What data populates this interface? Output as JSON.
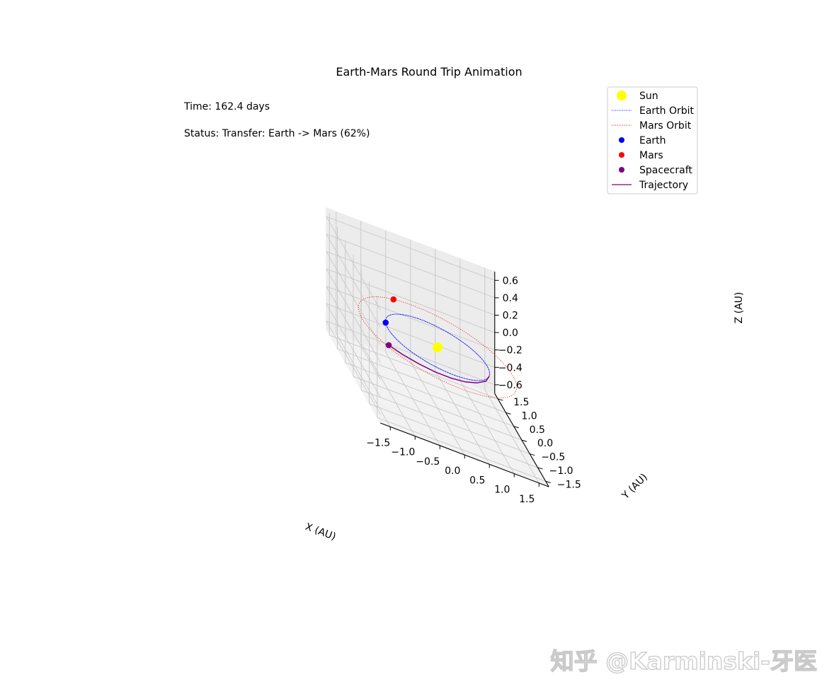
{
  "chart_data": {
    "type": "3d-line-scatter",
    "title": "Earth-Mars Round Trip Animation",
    "xlabel": "X (AU)",
    "ylabel": "Y (AU)",
    "zlabel": "Z (AU)",
    "xlim": [
      -1.7,
      1.7
    ],
    "ylim": [
      -1.7,
      1.7
    ],
    "zlim": [
      -0.7,
      0.7
    ],
    "xticks": [
      "−1.5",
      "−1.0",
      "−0.5",
      "0.0",
      "0.5",
      "1.0",
      "1.5"
    ],
    "yticks": [
      "−1.5",
      "−1.0",
      "−0.5",
      "0.0",
      "0.5",
      "1.0",
      "1.5"
    ],
    "zticks": [
      "−0.6",
      "−0.4",
      "−0.2",
      "0.0",
      "0.2",
      "0.4",
      "0.6"
    ],
    "grid": true,
    "legend_position": "top-right",
    "time_text": "Time: 162.4 days",
    "status_text": "Status: Transfer: Earth -> Mars (62%)",
    "status_color": "#800080",
    "watermark": "知乎 @Karminski-牙医",
    "series": [
      {
        "name": "Sun",
        "kind": "point",
        "color": "#ffff00",
        "x": 0,
        "y": 0,
        "z": 0
      },
      {
        "name": "Earth Orbit",
        "kind": "orbit",
        "style": "dotted",
        "color": "#0000ff",
        "radius": 1.0
      },
      {
        "name": "Mars Orbit",
        "kind": "orbit",
        "style": "dotted",
        "color": "#ff0000",
        "radius": 1.52
      },
      {
        "name": "Earth",
        "kind": "point",
        "color": "#0000ff",
        "x": -0.97,
        "y": 0.24,
        "z": 0
      },
      {
        "name": "Mars",
        "kind": "point",
        "color": "#ff0000",
        "x": -0.42,
        "y": 1.46,
        "z": 0
      },
      {
        "name": "Spacecraft",
        "kind": "point",
        "color": "#800080",
        "x": -1.23,
        "y": -0.76,
        "z": 0
      },
      {
        "name": "Trajectory",
        "kind": "line",
        "color": "#800080",
        "points": [
          [
            0.91,
            -0.42
          ],
          [
            0.74,
            -0.73
          ],
          [
            0.49,
            -0.96
          ],
          [
            0.2,
            -1.12
          ],
          [
            -0.11,
            -1.2
          ],
          [
            -0.43,
            -1.19
          ],
          [
            -0.73,
            -1.1
          ],
          [
            -1.0,
            -0.96
          ],
          [
            -1.23,
            -0.76
          ]
        ]
      }
    ]
  }
}
